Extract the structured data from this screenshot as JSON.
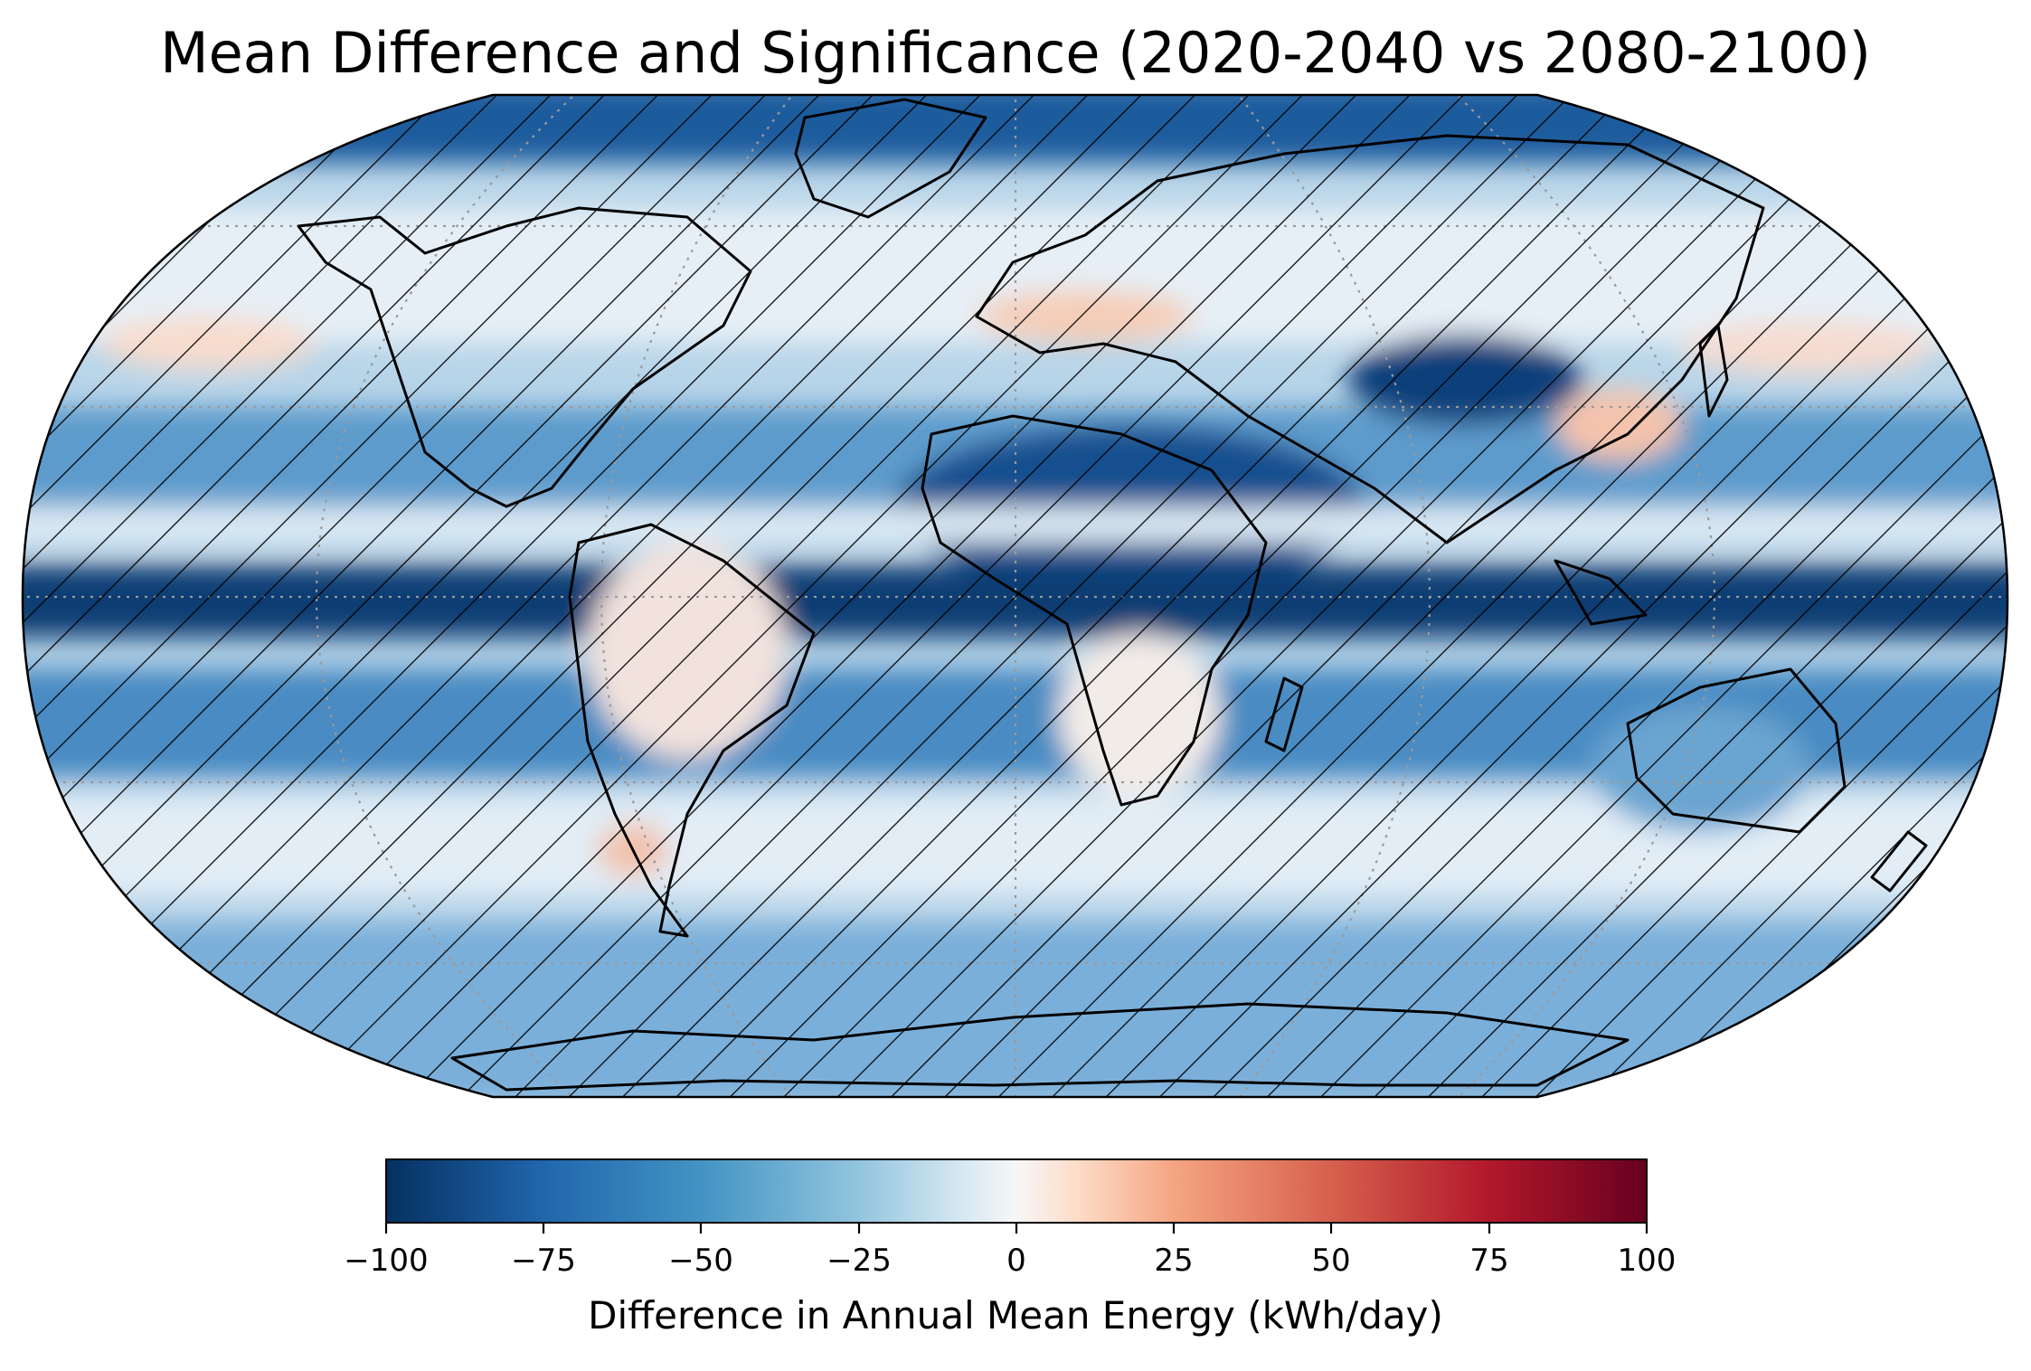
{
  "title": "Mean Difference and Significance (2020-2040 vs 2080-2100)",
  "map": {
    "projection": "Robinson",
    "features": [
      "coastlines",
      "gridlines (dotted)",
      "hatching = significant"
    ],
    "colormap": "RdBu_r"
  },
  "colorbar": {
    "label": "Difference in Annual Mean Energy (kWh/day)",
    "range": [
      -100,
      100
    ],
    "ticks": [
      "−100",
      "−75",
      "−50",
      "−25",
      "0",
      "25",
      "50",
      "75",
      "100"
    ],
    "colors": {
      "min": "#053061",
      "low": "#2166ac",
      "midlow": "#67a9cf",
      "pale_blue": "#d1e5f0",
      "white": "#f7f7f7",
      "pale_red": "#fddbc7",
      "midhigh": "#ef8a62",
      "high": "#b2182b",
      "max": "#67001f"
    }
  }
}
